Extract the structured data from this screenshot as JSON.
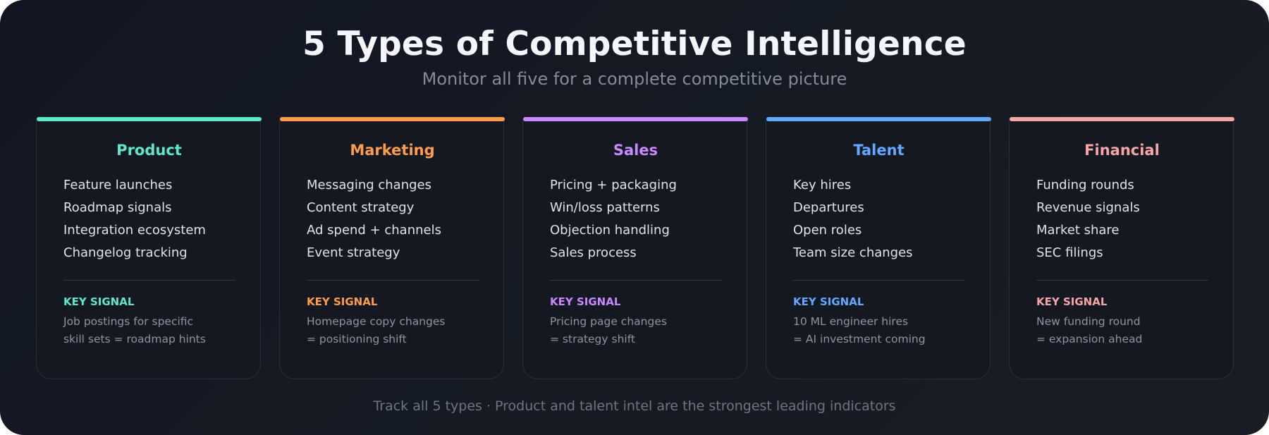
{
  "header": {
    "title": "5 Types of Competitive Intelligence",
    "subtitle": "Monitor all five for a complete competitive picture"
  },
  "cards": [
    {
      "title": "Product",
      "accent": "#5ee8cb",
      "items": [
        "Feature launches",
        "Roadmap signals",
        "Integration ecosystem",
        "Changelog tracking"
      ],
      "signal_label": "KEY SIGNAL",
      "signal_lines": [
        "Job postings for specific",
        "skill sets = roadmap hints"
      ]
    },
    {
      "title": "Marketing",
      "accent": "#ff9d4d",
      "items": [
        "Messaging changes",
        "Content strategy",
        "Ad spend + channels",
        "Event strategy"
      ],
      "signal_label": "KEY SIGNAL",
      "signal_lines": [
        "Homepage copy changes",
        "= positioning shift"
      ]
    },
    {
      "title": "Sales",
      "accent": "#c989ff",
      "items": [
        "Pricing + packaging",
        "Win/loss patterns",
        "Objection handling",
        "Sales process"
      ],
      "signal_label": "KEY SIGNAL",
      "signal_lines": [
        "Pricing page changes",
        "= strategy shift"
      ]
    },
    {
      "title": "Talent",
      "accent": "#64a8ff",
      "items": [
        "Key hires",
        "Departures",
        "Open roles",
        "Team size changes"
      ],
      "signal_label": "KEY SIGNAL",
      "signal_lines": [
        "10 ML engineer hires",
        "= AI investment coming"
      ]
    },
    {
      "title": "Financial",
      "accent": "#f6a5a8",
      "items": [
        "Funding rounds",
        "Revenue signals",
        "Market share",
        "SEC filings"
      ],
      "signal_label": "KEY SIGNAL",
      "signal_lines": [
        "New funding round",
        "= expansion ahead"
      ]
    }
  ],
  "footer": {
    "text": "Track all 5 types · Product and talent intel are the strongest leading indicators"
  }
}
